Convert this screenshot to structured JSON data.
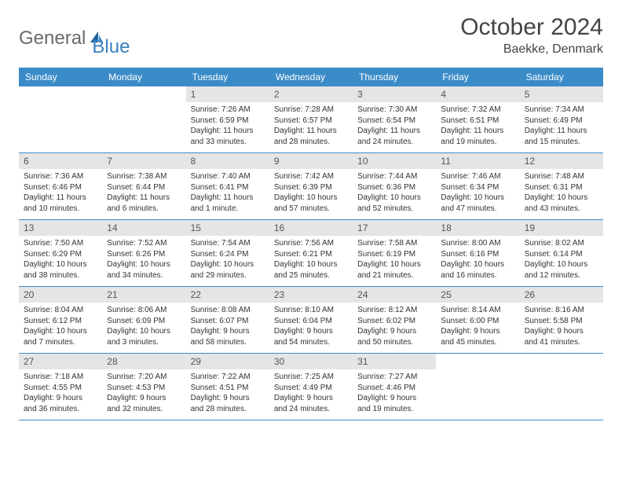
{
  "logo": {
    "text1": "General",
    "text2": "Blue"
  },
  "title": "October 2024",
  "location": "Baekke, Denmark",
  "colors": {
    "header_bg": "#3b8bc9",
    "header_text": "#ffffff",
    "datebar_bg": "#e5e5e5",
    "border": "#3b8bc9",
    "body_text": "#333333",
    "logo_gray": "#6b6b6b",
    "logo_blue": "#3b7fbf"
  },
  "day_names": [
    "Sunday",
    "Monday",
    "Tuesday",
    "Wednesday",
    "Thursday",
    "Friday",
    "Saturday"
  ],
  "weeks": [
    [
      {
        "empty": true
      },
      {
        "empty": true
      },
      {
        "n": "1",
        "sr": "Sunrise: 7:26 AM",
        "ss": "Sunset: 6:59 PM",
        "dl": "Daylight: 11 hours and 33 minutes."
      },
      {
        "n": "2",
        "sr": "Sunrise: 7:28 AM",
        "ss": "Sunset: 6:57 PM",
        "dl": "Daylight: 11 hours and 28 minutes."
      },
      {
        "n": "3",
        "sr": "Sunrise: 7:30 AM",
        "ss": "Sunset: 6:54 PM",
        "dl": "Daylight: 11 hours and 24 minutes."
      },
      {
        "n": "4",
        "sr": "Sunrise: 7:32 AM",
        "ss": "Sunset: 6:51 PM",
        "dl": "Daylight: 11 hours and 19 minutes."
      },
      {
        "n": "5",
        "sr": "Sunrise: 7:34 AM",
        "ss": "Sunset: 6:49 PM",
        "dl": "Daylight: 11 hours and 15 minutes."
      }
    ],
    [
      {
        "n": "6",
        "sr": "Sunrise: 7:36 AM",
        "ss": "Sunset: 6:46 PM",
        "dl": "Daylight: 11 hours and 10 minutes."
      },
      {
        "n": "7",
        "sr": "Sunrise: 7:38 AM",
        "ss": "Sunset: 6:44 PM",
        "dl": "Daylight: 11 hours and 6 minutes."
      },
      {
        "n": "8",
        "sr": "Sunrise: 7:40 AM",
        "ss": "Sunset: 6:41 PM",
        "dl": "Daylight: 11 hours and 1 minute."
      },
      {
        "n": "9",
        "sr": "Sunrise: 7:42 AM",
        "ss": "Sunset: 6:39 PM",
        "dl": "Daylight: 10 hours and 57 minutes."
      },
      {
        "n": "10",
        "sr": "Sunrise: 7:44 AM",
        "ss": "Sunset: 6:36 PM",
        "dl": "Daylight: 10 hours and 52 minutes."
      },
      {
        "n": "11",
        "sr": "Sunrise: 7:46 AM",
        "ss": "Sunset: 6:34 PM",
        "dl": "Daylight: 10 hours and 47 minutes."
      },
      {
        "n": "12",
        "sr": "Sunrise: 7:48 AM",
        "ss": "Sunset: 6:31 PM",
        "dl": "Daylight: 10 hours and 43 minutes."
      }
    ],
    [
      {
        "n": "13",
        "sr": "Sunrise: 7:50 AM",
        "ss": "Sunset: 6:29 PM",
        "dl": "Daylight: 10 hours and 38 minutes."
      },
      {
        "n": "14",
        "sr": "Sunrise: 7:52 AM",
        "ss": "Sunset: 6:26 PM",
        "dl": "Daylight: 10 hours and 34 minutes."
      },
      {
        "n": "15",
        "sr": "Sunrise: 7:54 AM",
        "ss": "Sunset: 6:24 PM",
        "dl": "Daylight: 10 hours and 29 minutes."
      },
      {
        "n": "16",
        "sr": "Sunrise: 7:56 AM",
        "ss": "Sunset: 6:21 PM",
        "dl": "Daylight: 10 hours and 25 minutes."
      },
      {
        "n": "17",
        "sr": "Sunrise: 7:58 AM",
        "ss": "Sunset: 6:19 PM",
        "dl": "Daylight: 10 hours and 21 minutes."
      },
      {
        "n": "18",
        "sr": "Sunrise: 8:00 AM",
        "ss": "Sunset: 6:16 PM",
        "dl": "Daylight: 10 hours and 16 minutes."
      },
      {
        "n": "19",
        "sr": "Sunrise: 8:02 AM",
        "ss": "Sunset: 6:14 PM",
        "dl": "Daylight: 10 hours and 12 minutes."
      }
    ],
    [
      {
        "n": "20",
        "sr": "Sunrise: 8:04 AM",
        "ss": "Sunset: 6:12 PM",
        "dl": "Daylight: 10 hours and 7 minutes."
      },
      {
        "n": "21",
        "sr": "Sunrise: 8:06 AM",
        "ss": "Sunset: 6:09 PM",
        "dl": "Daylight: 10 hours and 3 minutes."
      },
      {
        "n": "22",
        "sr": "Sunrise: 8:08 AM",
        "ss": "Sunset: 6:07 PM",
        "dl": "Daylight: 9 hours and 58 minutes."
      },
      {
        "n": "23",
        "sr": "Sunrise: 8:10 AM",
        "ss": "Sunset: 6:04 PM",
        "dl": "Daylight: 9 hours and 54 minutes."
      },
      {
        "n": "24",
        "sr": "Sunrise: 8:12 AM",
        "ss": "Sunset: 6:02 PM",
        "dl": "Daylight: 9 hours and 50 minutes."
      },
      {
        "n": "25",
        "sr": "Sunrise: 8:14 AM",
        "ss": "Sunset: 6:00 PM",
        "dl": "Daylight: 9 hours and 45 minutes."
      },
      {
        "n": "26",
        "sr": "Sunrise: 8:16 AM",
        "ss": "Sunset: 5:58 PM",
        "dl": "Daylight: 9 hours and 41 minutes."
      }
    ],
    [
      {
        "n": "27",
        "sr": "Sunrise: 7:18 AM",
        "ss": "Sunset: 4:55 PM",
        "dl": "Daylight: 9 hours and 36 minutes."
      },
      {
        "n": "28",
        "sr": "Sunrise: 7:20 AM",
        "ss": "Sunset: 4:53 PM",
        "dl": "Daylight: 9 hours and 32 minutes."
      },
      {
        "n": "29",
        "sr": "Sunrise: 7:22 AM",
        "ss": "Sunset: 4:51 PM",
        "dl": "Daylight: 9 hours and 28 minutes."
      },
      {
        "n": "30",
        "sr": "Sunrise: 7:25 AM",
        "ss": "Sunset: 4:49 PM",
        "dl": "Daylight: 9 hours and 24 minutes."
      },
      {
        "n": "31",
        "sr": "Sunrise: 7:27 AM",
        "ss": "Sunset: 4:46 PM",
        "dl": "Daylight: 9 hours and 19 minutes."
      },
      {
        "empty": true
      },
      {
        "empty": true
      }
    ]
  ]
}
